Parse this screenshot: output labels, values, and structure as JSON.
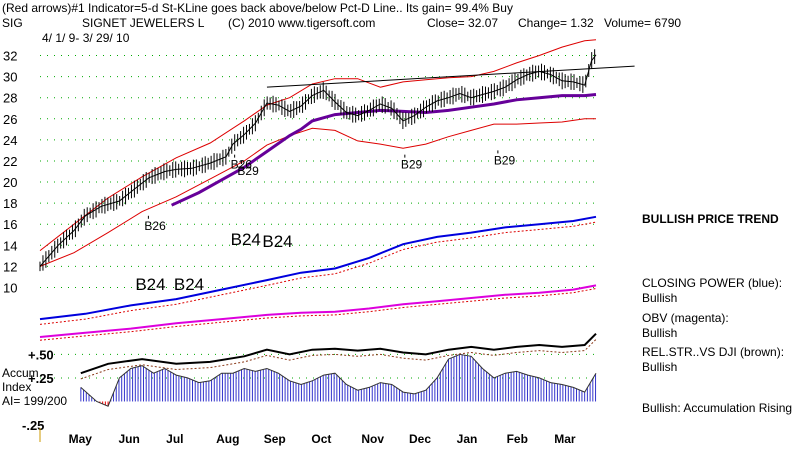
{
  "header": {
    "line1": "(Red arrows)#1 Indicator=5-d St-KLine goes back above/below Pct-D Line.. Its gain= 99.4% Buy",
    "ticker": "SIG",
    "company": "SIGNET JEWELERS L",
    "copyright": "(C) 2010 www.tigersoft.com",
    "close": "Close=  32.07",
    "change": "Change= 1.32",
    "volume": "Volume= 6790",
    "date_range": "4/ 1/ 9- 3/ 29/ 10"
  },
  "annotations": {
    "price_trend": "BULLISH PRICE TREND",
    "closing_power_title": "CLOSING POWER (blue):",
    "closing_power_value": "Bullish",
    "obv_title": "OBV (magenta):",
    "obv_value": "Bullish",
    "relstr_title": "REL.STR..VS DJI (brown):",
    "relstr_value": "Bullish",
    "accum_status": "Bullish: Accumulation Rising",
    "accum_label1": "Accum",
    "accum_label2": "Index",
    "accum_label3": "AI= 199/200"
  },
  "signals": {
    "small": [
      {
        "text": "B26",
        "x": 84,
        "y": 22.6
      },
      {
        "text": "B29",
        "x": 87,
        "y": 22.0
      },
      {
        "text": "B29",
        "x": 159,
        "y": 22.6
      },
      {
        "text": "B29",
        "x": 200,
        "y": 23.0
      },
      {
        "text": "B26",
        "x": 46,
        "y": 16.8
      }
    ],
    "large": [
      {
        "text": "B24",
        "x": 84,
        "y": 14.8
      },
      {
        "text": "B24",
        "x": 98,
        "y": 14.6
      },
      {
        "text": "B24",
        "x": 42,
        "y": 10.5
      },
      {
        "text": "B24",
        "x": 59,
        "y": 10.5
      }
    ]
  },
  "colors": {
    "price": "#000000",
    "bands": "#dd0000",
    "ma": "#660099",
    "closing_power": "#0000dd",
    "obv": "#dd00dd",
    "relstr": "#8b3a1a",
    "accum": "#3333cc",
    "arrow_red": "#ee0000",
    "grid": "#00aa00"
  },
  "chart_data": [
    {
      "type": "line",
      "title": "SIGNET JEWELERS L",
      "xlabel": "",
      "ylabel": "",
      "x_ticks": [
        "May",
        "Jun",
        "Jul",
        "Aug",
        "Sep",
        "Oct",
        "Nov",
        "Dec",
        "Jan",
        "Feb",
        "Mar"
      ],
      "x_tick_positions": [
        17,
        39,
        60,
        82,
        103,
        124,
        146,
        167,
        188,
        210,
        231
      ],
      "y_ticks": [
        10,
        12,
        14,
        16,
        18,
        20,
        22,
        24,
        26,
        28,
        30,
        32
      ],
      "ylim": [
        9,
        33
      ],
      "xlim": [
        0,
        245
      ],
      "grid": true,
      "series": [
        {
          "name": "Price",
          "x": [
            0,
            8,
            15,
            20,
            27,
            35,
            42,
            48,
            55,
            60,
            67,
            75,
            82,
            85,
            90,
            95,
            100,
            105,
            110,
            115,
            120,
            125,
            130,
            135,
            140,
            145,
            150,
            155,
            160,
            165,
            170,
            175,
            180,
            185,
            190,
            195,
            200,
            205,
            210,
            215,
            220,
            225,
            230,
            235,
            240,
            243,
            245
          ],
          "values": [
            12.0,
            14.0,
            15.4,
            16.8,
            17.7,
            18.2,
            19.4,
            20.4,
            21.0,
            21.2,
            21.3,
            21.8,
            22.4,
            23.6,
            24.5,
            25.6,
            27.5,
            27.3,
            26.7,
            27.2,
            28.2,
            28.7,
            27.6,
            26.6,
            26.3,
            26.8,
            27.4,
            27.0,
            25.8,
            26.3,
            27.1,
            27.7,
            28.0,
            28.4,
            28.0,
            28.3,
            28.6,
            29.0,
            29.7,
            30.2,
            30.5,
            30.2,
            29.6,
            29.5,
            29.2,
            31.5,
            32.07
          ]
        },
        {
          "name": "Upper band",
          "x": [
            0,
            15,
            30,
            45,
            60,
            75,
            90,
            100,
            110,
            120,
            130,
            140,
            150,
            160,
            170,
            180,
            190,
            200,
            210,
            220,
            230,
            240,
            245
          ],
          "values": [
            13.5,
            16.0,
            18.5,
            20.5,
            22.3,
            23.7,
            25.8,
            27.3,
            28.0,
            29.3,
            29.8,
            29.8,
            29.0,
            29.5,
            29.7,
            29.9,
            30.0,
            30.5,
            31.3,
            32.0,
            32.8,
            33.4,
            33.5
          ]
        },
        {
          "name": "Lower band",
          "x": [
            0,
            15,
            30,
            45,
            60,
            75,
            90,
            100,
            110,
            120,
            130,
            140,
            150,
            160,
            170,
            180,
            190,
            200,
            210,
            220,
            230,
            240,
            245
          ],
          "values": [
            12.0,
            13.3,
            15.2,
            17.2,
            18.6,
            20.3,
            22.0,
            23.5,
            24.4,
            25.1,
            24.9,
            23.9,
            23.6,
            23.2,
            23.6,
            24.3,
            24.9,
            25.5,
            25.5,
            25.6,
            25.7,
            26.0,
            26.0
          ]
        },
        {
          "name": "Moving average",
          "x": [
            58,
            70,
            80,
            90,
            100,
            110,
            115,
            120,
            130,
            140,
            150,
            160,
            170,
            180,
            190,
            200,
            210,
            220,
            230,
            240,
            245
          ],
          "values": [
            17.8,
            19.0,
            20.2,
            21.4,
            22.9,
            24.4,
            25.0,
            25.8,
            26.4,
            26.6,
            26.8,
            26.7,
            26.6,
            26.8,
            27.1,
            27.4,
            27.8,
            28.0,
            28.2,
            28.2,
            28.3
          ]
        }
      ]
    },
    {
      "type": "line",
      "title": "",
      "xlabel": "",
      "ylabel": "",
      "y_ticks": [],
      "series": [
        {
          "name": "Closing Power",
          "x": [
            0,
            20,
            40,
            60,
            80,
            100,
            115,
            130,
            145,
            160,
            175,
            190,
            205,
            220,
            235,
            245
          ],
          "values": [
            7.0,
            7.5,
            8.3,
            8.9,
            9.8,
            10.7,
            11.4,
            11.8,
            12.8,
            14.1,
            14.8,
            15.2,
            15.7,
            16.0,
            16.3,
            16.7
          ]
        },
        {
          "name": "OBV",
          "x": [
            0,
            20,
            40,
            60,
            80,
            100,
            115,
            130,
            145,
            160,
            175,
            190,
            205,
            220,
            235,
            245
          ],
          "values": [
            5.3,
            5.7,
            6.1,
            6.6,
            7.0,
            7.4,
            7.6,
            7.7,
            8.0,
            8.4,
            8.7,
            9.0,
            9.3,
            9.5,
            9.8,
            10.2
          ]
        }
      ]
    },
    {
      "type": "area",
      "title": "",
      "xlabel": "",
      "ylabel": "",
      "y_ticks": [
        ".50",
        ".25",
        "-.25"
      ],
      "ylim": [
        -0.25,
        0.6
      ],
      "series": [
        {
          "name": "Accumulation Index",
          "x": [
            18,
            25,
            30,
            35,
            40,
            45,
            50,
            55,
            60,
            65,
            70,
            75,
            80,
            85,
            90,
            95,
            100,
            105,
            110,
            115,
            120,
            125,
            130,
            135,
            140,
            145,
            150,
            155,
            160,
            165,
            170,
            175,
            180,
            185,
            190,
            195,
            200,
            205,
            210,
            215,
            220,
            225,
            230,
            235,
            240,
            245
          ],
          "values": [
            0.15,
            0.0,
            -0.05,
            0.25,
            0.35,
            0.38,
            0.3,
            0.35,
            0.28,
            0.25,
            0.2,
            0.22,
            0.3,
            0.3,
            0.35,
            0.32,
            0.35,
            0.3,
            0.22,
            0.18,
            0.22,
            0.28,
            0.3,
            0.18,
            0.12,
            0.15,
            0.2,
            0.18,
            0.1,
            0.08,
            0.12,
            0.25,
            0.45,
            0.5,
            0.48,
            0.35,
            0.25,
            0.3,
            0.32,
            0.28,
            0.25,
            0.2,
            0.18,
            0.15,
            0.1,
            0.3
          ]
        },
        {
          "name": "Relative Strength vs DJI",
          "x": [
            18,
            30,
            45,
            60,
            75,
            90,
            100,
            110,
            120,
            130,
            140,
            150,
            160,
            170,
            180,
            190,
            200,
            210,
            220,
            230,
            240,
            245
          ],
          "values": [
            0.3,
            0.4,
            0.45,
            0.4,
            0.42,
            0.48,
            0.55,
            0.5,
            0.55,
            0.56,
            0.54,
            0.56,
            0.52,
            0.5,
            0.55,
            0.58,
            0.55,
            0.58,
            0.6,
            0.58,
            0.6,
            0.72
          ]
        }
      ]
    }
  ]
}
